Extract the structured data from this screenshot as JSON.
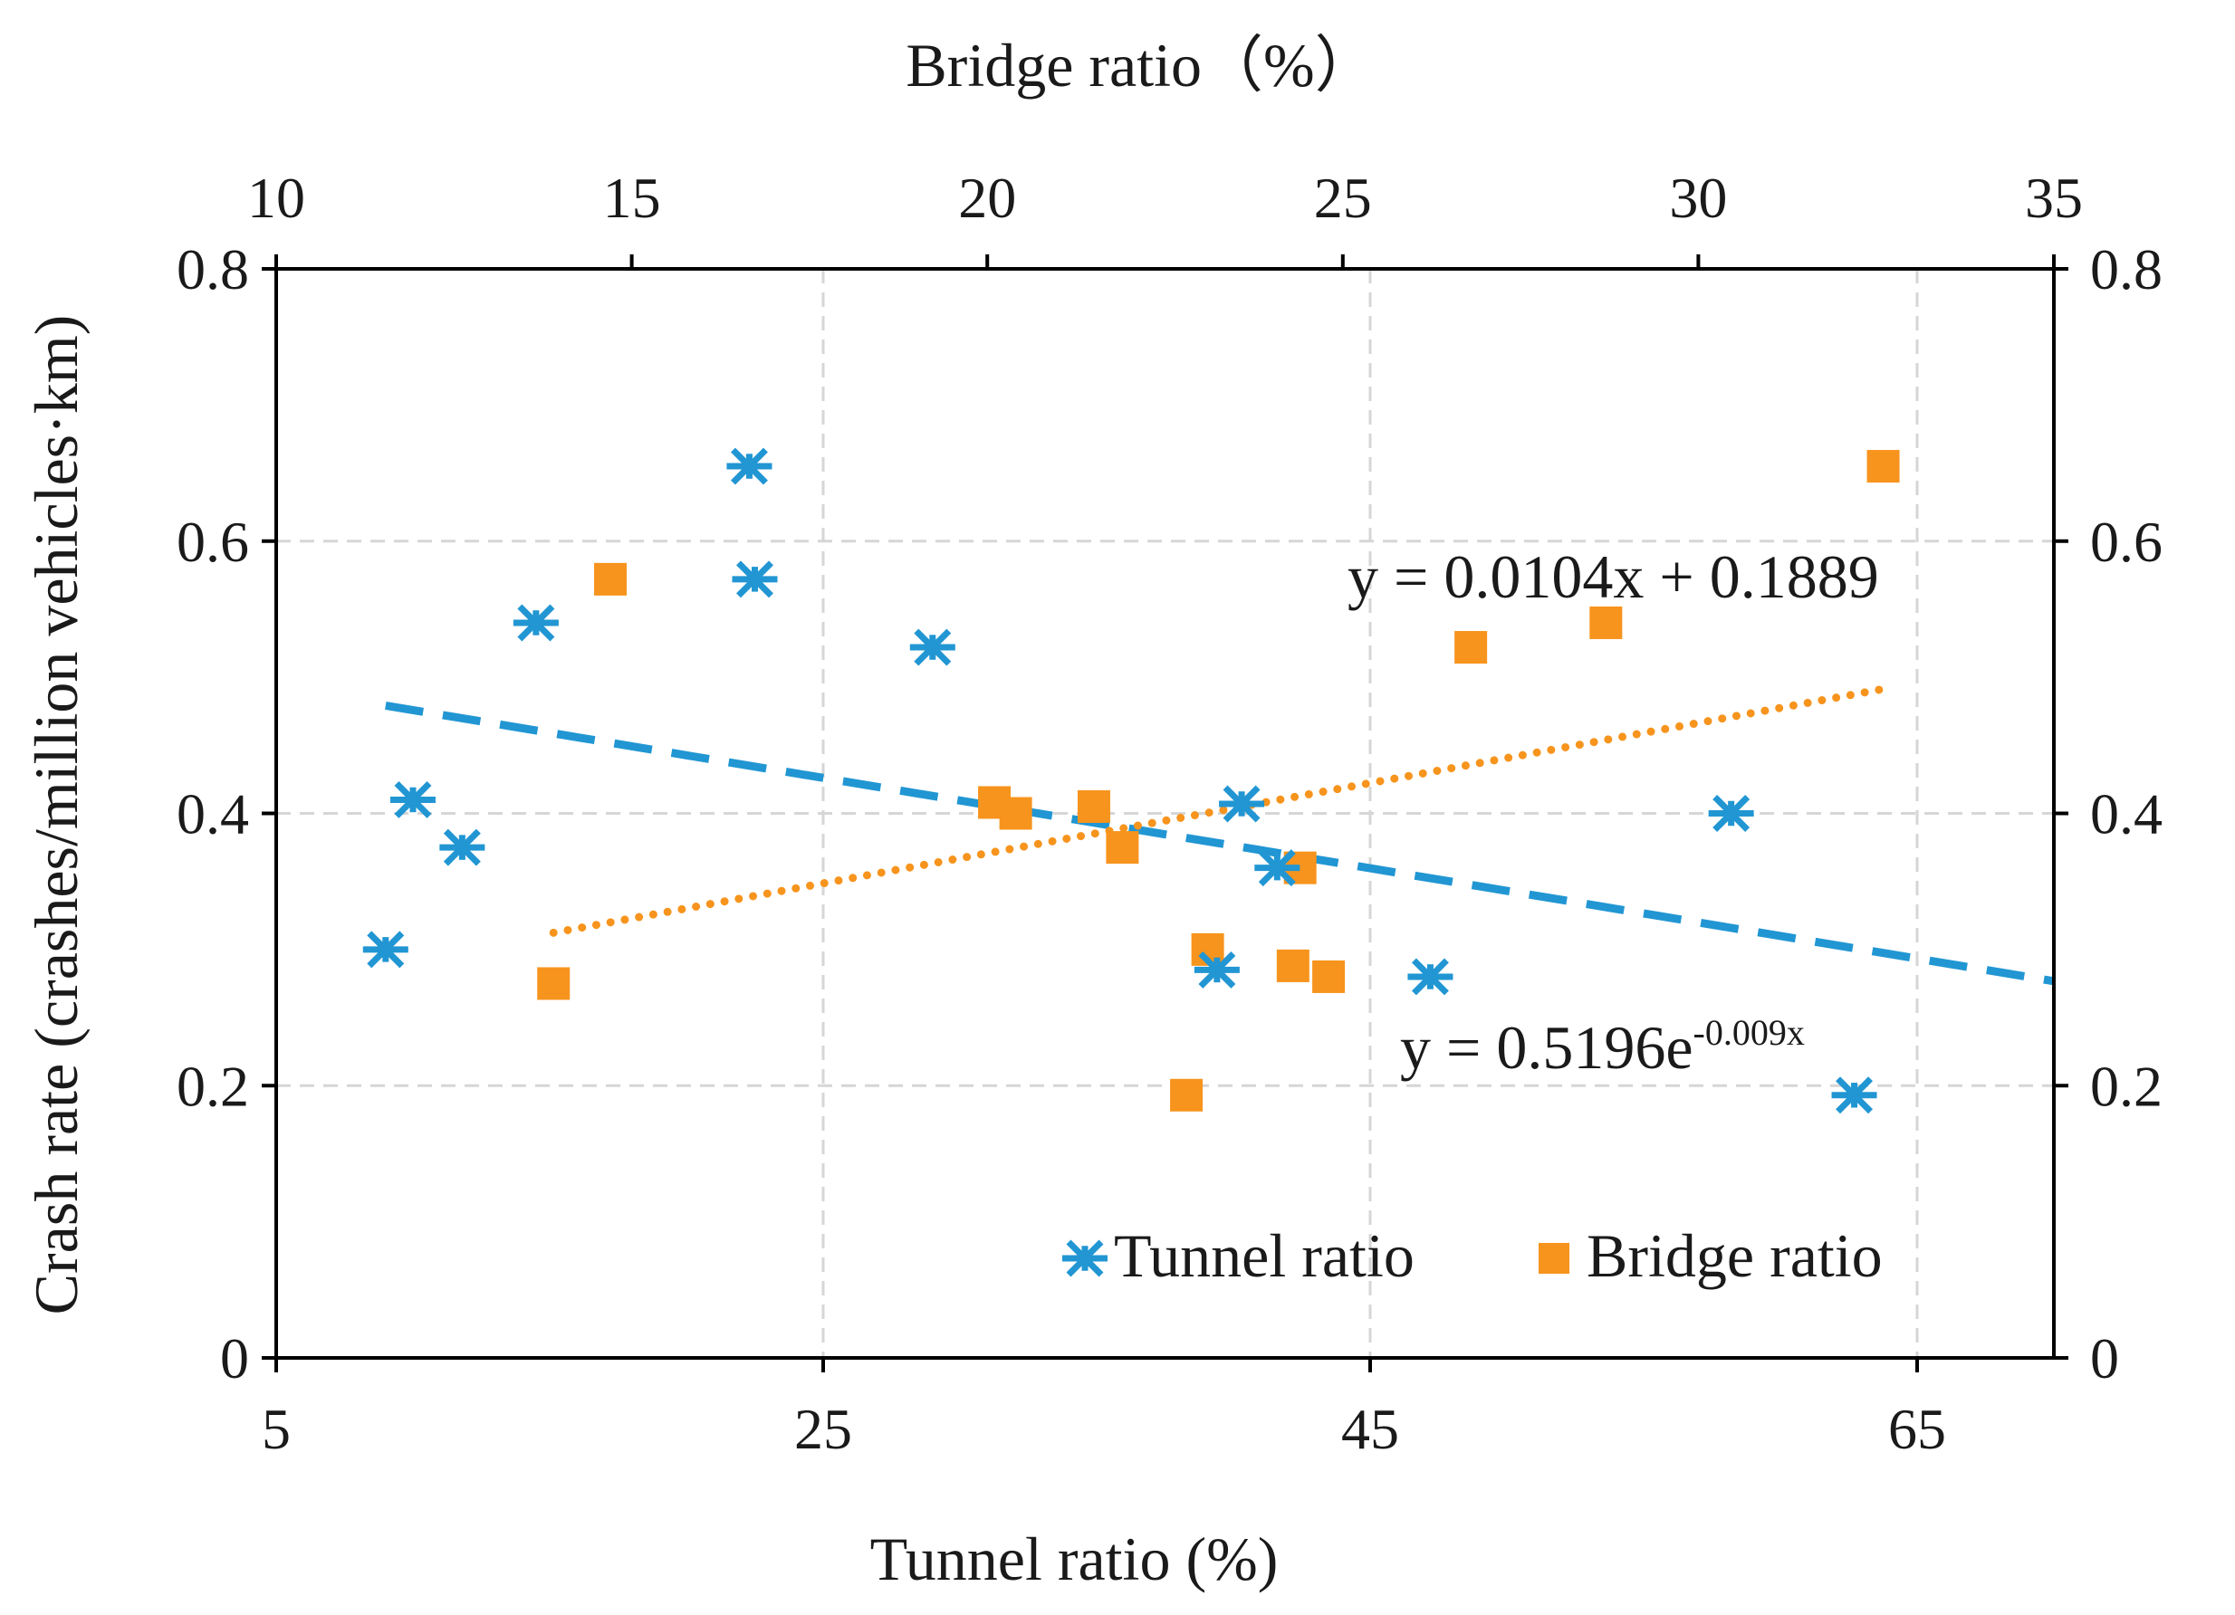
{
  "chart_data": {
    "type": "scatter",
    "colors": {
      "tunnel": "#2196d3",
      "bridge": "#f7941d"
    },
    "x_bottom": {
      "label": "Tunnel ratio (%)",
      "range": [
        5,
        70
      ],
      "ticks": [
        "5",
        "25",
        "45",
        "65"
      ],
      "tick_values": [
        5,
        25,
        45,
        65
      ]
    },
    "x_top": {
      "label": "Bridge ratio（%）",
      "range": [
        10,
        35
      ],
      "ticks": [
        "10",
        "15",
        "20",
        "25",
        "30",
        "35"
      ],
      "tick_values": [
        10,
        15,
        20,
        25,
        30,
        35
      ]
    },
    "y_left": {
      "label": "Crash rate (crashes/million vehicles·km)",
      "range": [
        0,
        0.8
      ],
      "ticks": [
        "0",
        "0.2",
        "0.4",
        "0.6",
        "0.8"
      ],
      "tick_values": [
        0,
        0.2,
        0.4,
        0.6,
        0.8
      ]
    },
    "y_right": {
      "range": [
        0,
        0.8
      ],
      "ticks": [
        "0",
        "0.2",
        "0.4",
        "0.6",
        "0.8"
      ],
      "tick_values": [
        0,
        0.2,
        0.4,
        0.6,
        0.8
      ]
    },
    "grid": true,
    "series": [
      {
        "name": "Tunnel ratio",
        "axis": "bottom",
        "marker": "asterisk",
        "points": [
          {
            "x": 9.0,
            "y": 0.3
          },
          {
            "x": 10.0,
            "y": 0.41
          },
          {
            "x": 11.8,
            "y": 0.375
          },
          {
            "x": 14.5,
            "y": 0.54
          },
          {
            "x": 22.3,
            "y": 0.655
          },
          {
            "x": 22.5,
            "y": 0.572
          },
          {
            "x": 29.0,
            "y": 0.522
          },
          {
            "x": 39.4,
            "y": 0.285
          },
          {
            "x": 40.3,
            "y": 0.407
          },
          {
            "x": 41.6,
            "y": 0.36
          },
          {
            "x": 47.2,
            "y": 0.28
          },
          {
            "x": 58.2,
            "y": 0.4
          },
          {
            "x": 62.7,
            "y": 0.193
          }
        ],
        "trendline": {
          "kind": "exponential",
          "style": "dashed",
          "equation_base": "y = 0.5196e",
          "equation_exp": "-0.009x",
          "a": 0.5196,
          "b": -0.009,
          "x_range": [
            9.0,
            70.0
          ]
        }
      },
      {
        "name": "Bridge ratio",
        "axis": "top",
        "marker": "square",
        "points": [
          {
            "x": 13.9,
            "y": 0.275
          },
          {
            "x": 14.7,
            "y": 0.572
          },
          {
            "x": 20.1,
            "y": 0.408
          },
          {
            "x": 20.4,
            "y": 0.4
          },
          {
            "x": 21.5,
            "y": 0.405
          },
          {
            "x": 21.9,
            "y": 0.375
          },
          {
            "x": 22.8,
            "y": 0.193
          },
          {
            "x": 23.1,
            "y": 0.3
          },
          {
            "x": 24.3,
            "y": 0.288
          },
          {
            "x": 24.4,
            "y": 0.36
          },
          {
            "x": 24.8,
            "y": 0.28
          },
          {
            "x": 26.8,
            "y": 0.522
          },
          {
            "x": 28.7,
            "y": 0.54
          },
          {
            "x": 32.6,
            "y": 0.655
          }
        ],
        "trendline": {
          "kind": "linear",
          "style": "dotted",
          "equation": "y = 0.0104x + 0.1889",
          "x_range": [
            13.9,
            32.6
          ]
        }
      }
    ],
    "legend": {
      "position": "bottom-right"
    }
  }
}
